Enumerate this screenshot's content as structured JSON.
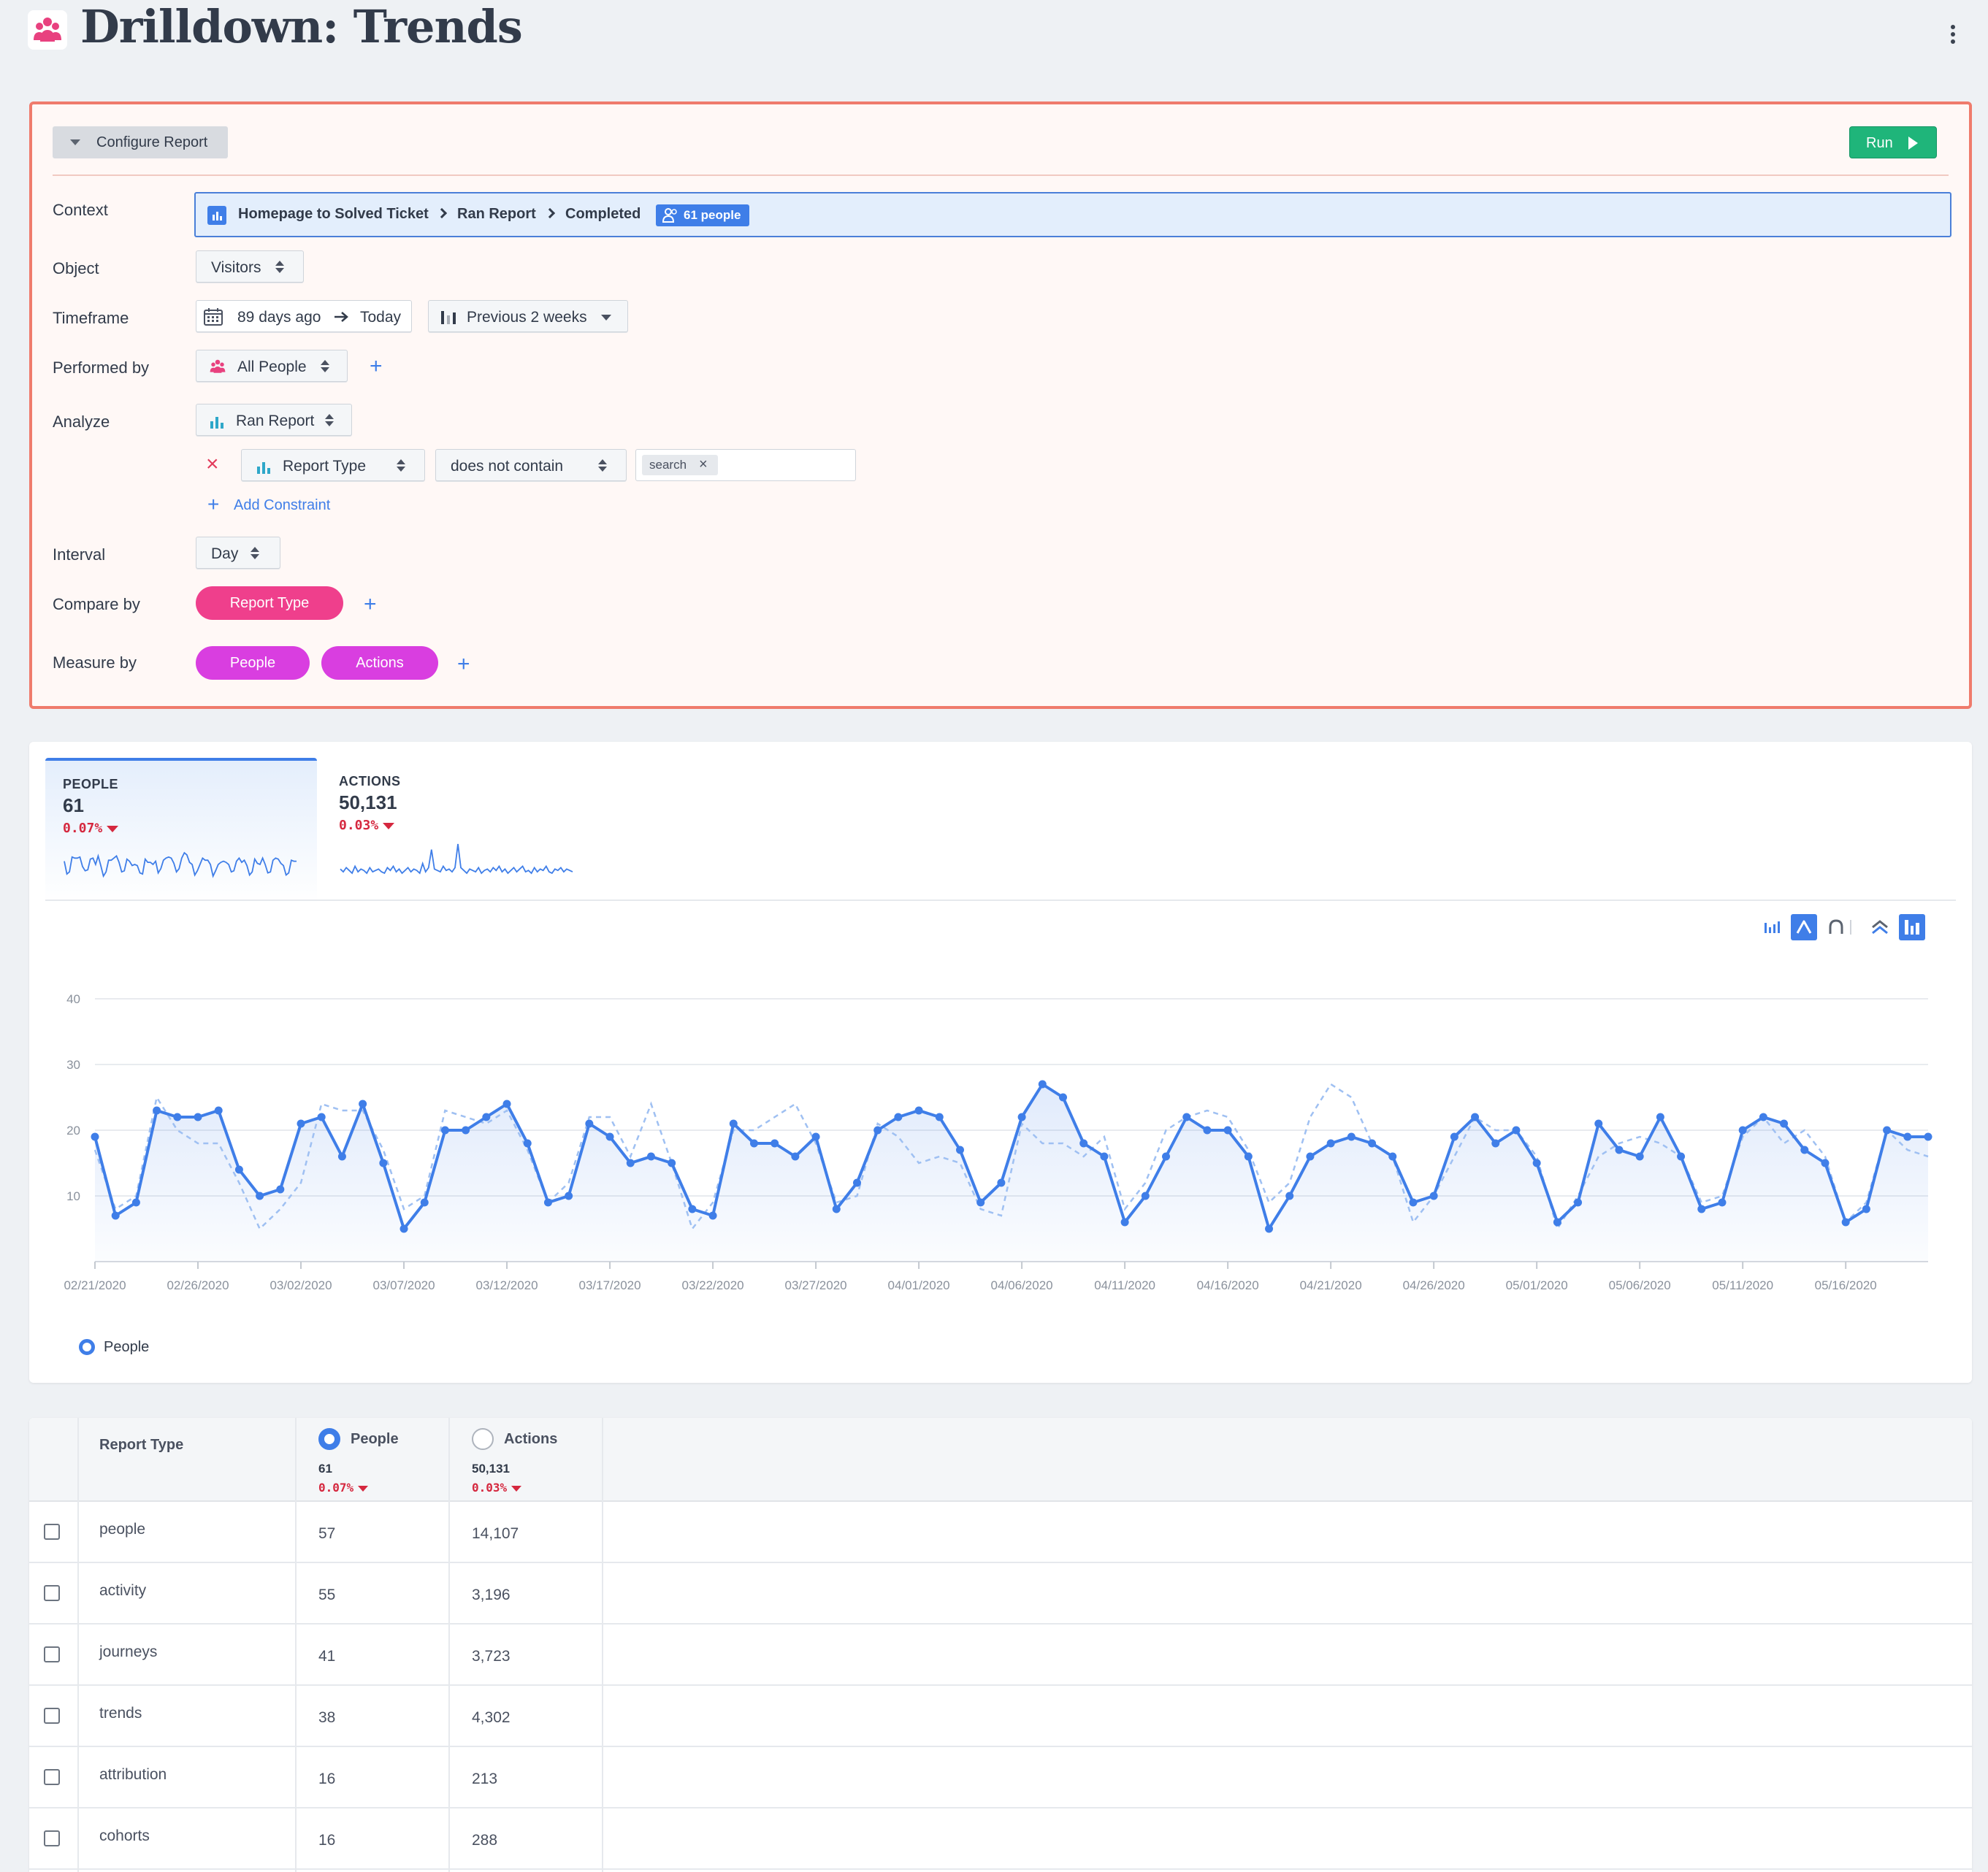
{
  "header": {
    "title": "Drilldown: Trends",
    "logo_icon": "people-group-icon",
    "menu_icon": "more-vertical-icon"
  },
  "config": {
    "toggle_label": "Configure Report",
    "run_label": "Run",
    "labels": {
      "context": "Context",
      "object": "Object",
      "timeframe": "Timeframe",
      "performed_by": "Performed by",
      "analyze": "Analyze",
      "interval": "Interval",
      "compare_by": "Compare by",
      "measure_by": "Measure by"
    },
    "context": {
      "segments": [
        "Homepage to Solved Ticket",
        "Ran Report",
        "Completed"
      ],
      "badge": "61 people"
    },
    "object": "Visitors",
    "timeframe": {
      "from": "89 days ago",
      "to": "Today",
      "comparison": "Previous 2 weeks"
    },
    "performed_by": "All People",
    "analyze": {
      "event": "Ran Report",
      "constraint": {
        "property": "Report Type",
        "operator": "does not contain",
        "value": "search"
      },
      "add_constraint": "Add Constraint"
    },
    "interval": "Day",
    "compare_by": [
      "Report Type"
    ],
    "measure_by": [
      "People",
      "Actions"
    ],
    "colors": {
      "compare_pill": "#ef3f8c",
      "measure_pill": "#d93ee0",
      "accent": "#3f7ee8",
      "run": "#1fb57a"
    }
  },
  "metrics": [
    {
      "name": "PEOPLE",
      "value": "61",
      "change": "0.07%",
      "direction": "down"
    },
    {
      "name": "ACTIONS",
      "value": "50,131",
      "change": "0.03%",
      "direction": "down"
    }
  ],
  "chart_tools": [
    "bar-chart-icon",
    "line-chart-icon",
    "curve-chart-icon",
    "stacked-area-icon",
    "column-toggle-icon"
  ],
  "chart_data": {
    "type": "line",
    "title": "",
    "xlabel": "",
    "ylabel": "",
    "ylim": [
      0,
      40
    ],
    "yticks": [
      "40",
      "30",
      "20",
      "10"
    ],
    "tick_labels": [
      "02/21/2020",
      "02/26/2020",
      "03/02/2020",
      "03/07/2020",
      "03/12/2020",
      "03/17/2020",
      "03/22/2020",
      "03/27/2020",
      "04/01/2020",
      "04/06/2020",
      "04/11/2020",
      "04/16/2020",
      "04/21/2020",
      "04/26/2020",
      "05/01/2020",
      "05/06/2020",
      "05/11/2020",
      "05/16/2020"
    ],
    "x_start": "02/21/2020",
    "x_end": "05/20/2020",
    "grid": true,
    "legend": "bottom-left",
    "series": [
      {
        "name": "People",
        "style": "solid",
        "values": [
          19,
          7,
          9,
          23,
          22,
          22,
          23,
          14,
          10,
          11,
          21,
          22,
          16,
          24,
          15,
          5,
          9,
          20,
          20,
          22,
          24,
          18,
          9,
          10,
          21,
          19,
          15,
          16,
          15,
          8,
          7,
          21,
          18,
          18,
          16,
          19,
          8,
          12,
          20,
          22,
          23,
          22,
          17,
          9,
          12,
          22,
          27,
          25,
          18,
          16,
          6,
          10,
          16,
          22,
          20,
          20,
          16,
          5,
          10,
          16,
          18,
          19,
          18,
          16,
          9,
          10,
          19,
          22,
          18,
          20,
          15,
          6,
          9,
          21,
          17,
          16,
          22,
          16,
          8,
          9,
          20,
          22,
          21,
          17,
          15,
          6,
          8,
          20,
          19,
          19
        ]
      },
      {
        "style": "dashed",
        "values": [
          17,
          8,
          10,
          25,
          20,
          18,
          18,
          12,
          5,
          8,
          12,
          24,
          23,
          23,
          17,
          8,
          10,
          23,
          22,
          21,
          23,
          17,
          9,
          12,
          22,
          22,
          16,
          24,
          15,
          5,
          9,
          20,
          20,
          22,
          24,
          18,
          9,
          10,
          21,
          19,
          15,
          16,
          15,
          8,
          7,
          21,
          18,
          18,
          16,
          19,
          8,
          12,
          20,
          22,
          23,
          22,
          17,
          9,
          12,
          22,
          27,
          25,
          18,
          16,
          6,
          10,
          16,
          22,
          20,
          20,
          16,
          5,
          10,
          16,
          18,
          19,
          18,
          16,
          9,
          10,
          19,
          22,
          18,
          20,
          16,
          6,
          9,
          20,
          17,
          16
        ]
      }
    ]
  },
  "sparklines": {
    "people": [
      19,
      7,
      9,
      23,
      22,
      22,
      23,
      14,
      10,
      11,
      21,
      22,
      16,
      24,
      15,
      5,
      9,
      20,
      20,
      22,
      24,
      18,
      9,
      10,
      21,
      19,
      15,
      16,
      15,
      8,
      7,
      21,
      18,
      18,
      16,
      19,
      8,
      12,
      20,
      22,
      23,
      22,
      17,
      9,
      12,
      22,
      27,
      25,
      18,
      16,
      6,
      10,
      16,
      22,
      20,
      20,
      16,
      5,
      10,
      16,
      18,
      19,
      18,
      16,
      9,
      10,
      19,
      22,
      18,
      20,
      15,
      6,
      9,
      21,
      17,
      16,
      22,
      16,
      8,
      9,
      20,
      22,
      21,
      17,
      15,
      6,
      8,
      20,
      19,
      19
    ],
    "actions": [
      8,
      6,
      9,
      7,
      5,
      10,
      6,
      8,
      7,
      5,
      9,
      6,
      7,
      8,
      6,
      5,
      9,
      7,
      10,
      6,
      8,
      5,
      7,
      9,
      6,
      8,
      7,
      5,
      12,
      6,
      9,
      22,
      8,
      7,
      6,
      10,
      7,
      8,
      6,
      9,
      26,
      9,
      7,
      5,
      8,
      7,
      6,
      9,
      5,
      7,
      8,
      6,
      9,
      7,
      10,
      6,
      8,
      5,
      7,
      9,
      6,
      8,
      10,
      6,
      7,
      5,
      9,
      6,
      8,
      7,
      10,
      6,
      5,
      8,
      7,
      9,
      6,
      8,
      7,
      6
    ]
  },
  "table": {
    "header_name": "Report Type",
    "metric_columns": [
      {
        "label": "People",
        "selected": true,
        "total": "61",
        "change": "0.07%"
      },
      {
        "label": "Actions",
        "selected": false,
        "total": "50,131",
        "change": "0.03%"
      }
    ],
    "rows": [
      {
        "name": "people",
        "people": "57",
        "actions": "14,107"
      },
      {
        "name": "activity",
        "people": "55",
        "actions": "3,196"
      },
      {
        "name": "journeys",
        "people": "41",
        "actions": "3,723"
      },
      {
        "name": "trends",
        "people": "38",
        "actions": "4,302"
      },
      {
        "name": "attribution",
        "people": "16",
        "actions": "213"
      },
      {
        "name": "cohorts",
        "people": "16",
        "actions": "288"
      }
    ]
  }
}
